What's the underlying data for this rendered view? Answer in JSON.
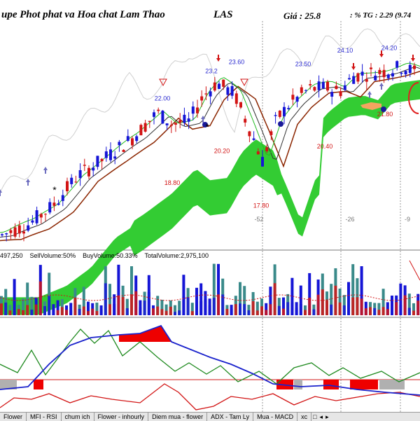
{
  "header": {
    "company": "upe Phot phat va Hoa chat Lam Thao",
    "ticker": "LAS",
    "price": "Giá : 25.8",
    "pct": ": % TG : 2.29 (9.74"
  },
  "volume_stats": {
    "text": "497,250    SellVolume:50%    BuyVolume:50.33%    TotalVolume:2,975,100"
  },
  "tabs": [
    "Flower",
    "MFI - RSI",
    "chum ich",
    "Flower - inhourly",
    "Diem mua - flower",
    "ADX - Tam Ly",
    "Mua - MACD",
    "xc"
  ],
  "tab_controls": [
    "◂",
    "▸"
  ],
  "colors": {
    "bull": "#1515d6",
    "bear": "#d21414",
    "cloud": "#33cc33",
    "cloud_orange": "#f4a460",
    "ma_dark": "#8b2500",
    "ma_black": "#333333",
    "ma_green": "#22bb22",
    "vol_teal": "#3a8a8a",
    "hist_red": "#ee0000",
    "hist_gray": "#b0b0b0"
  },
  "chart_data": [
    {
      "type": "candlestick",
      "title": "",
      "price_range": [
        15.8,
        25.6
      ],
      "price_labels": [
        {
          "text": "22.00",
          "value": 22.0,
          "color": "#2a2ad0"
        },
        {
          "text": "23.2",
          "value": 23.2,
          "color": "#2a2ad0"
        },
        {
          "text": "23.60",
          "value": 23.6,
          "color": "#2a2ad0"
        },
        {
          "text": "23.50",
          "value": 23.5,
          "color": "#2a2ad0"
        },
        {
          "text": "24.10",
          "value": 24.1,
          "color": "#2a2ad0"
        },
        {
          "text": "24.20",
          "value": 24.2,
          "color": "#2a2ad0"
        },
        {
          "text": "18.80",
          "value": 18.8,
          "color": "#d21414"
        },
        {
          "text": "20.20",
          "value": 20.2,
          "color": "#d21414"
        },
        {
          "text": "17.80",
          "value": 17.8,
          "color": "#d21414"
        },
        {
          "text": "20.40",
          "value": 20.4,
          "color": "#d21414"
        },
        {
          "text": "21.80",
          "value": 21.8,
          "color": "#d21414"
        }
      ],
      "day_markers": [
        "-52",
        "-26",
        "-9"
      ]
    },
    {
      "type": "bar",
      "title": "Volume"
    },
    {
      "type": "line",
      "title": "Oscillator"
    }
  ]
}
